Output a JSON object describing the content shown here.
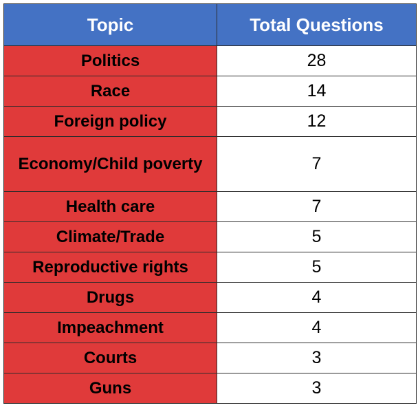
{
  "chart_data": {
    "type": "table",
    "columns": [
      "Topic",
      "Total Questions"
    ],
    "rows": [
      {
        "topic": "Politics",
        "count": "28"
      },
      {
        "topic": "Race",
        "count": "14"
      },
      {
        "topic": "Foreign policy",
        "count": "12"
      },
      {
        "topic": "Economy/Child poverty",
        "count": "7"
      },
      {
        "topic": "Health care",
        "count": "7"
      },
      {
        "topic": "Climate/Trade",
        "count": "5"
      },
      {
        "topic": "Reproductive rights",
        "count": "5"
      },
      {
        "topic": "Drugs",
        "count": "4"
      },
      {
        "topic": "Impeachment",
        "count": "4"
      },
      {
        "topic": "Courts",
        "count": "3"
      },
      {
        "topic": "Guns",
        "count": "3"
      }
    ]
  },
  "colors": {
    "header_bg": "#4472c4",
    "topic_bg": "#e03a3a",
    "count_bg": "#ffffff"
  }
}
